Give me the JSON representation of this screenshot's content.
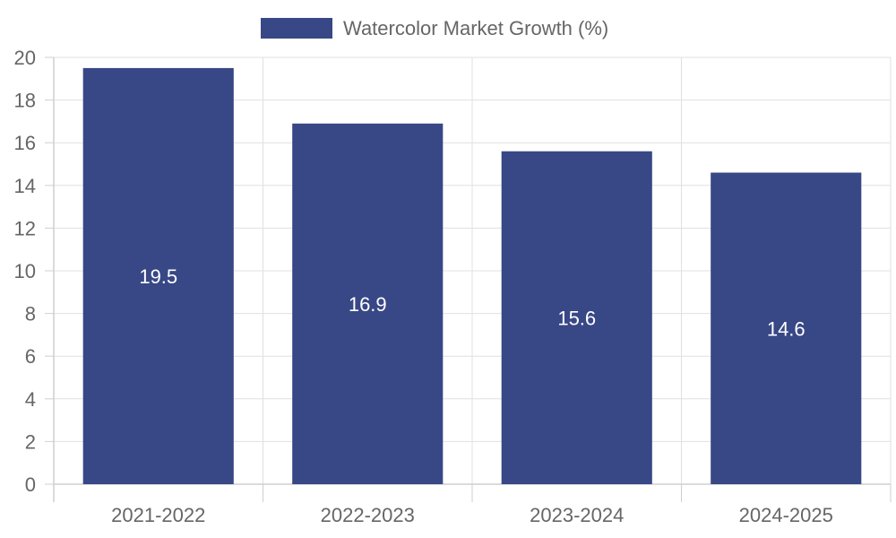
{
  "chart_data": {
    "type": "bar",
    "categories": [
      "2021-2022",
      "2022-2023",
      "2023-2024",
      "2024-2025"
    ],
    "series": [
      {
        "name": "Watercolor Market Growth (%)",
        "values": [
          19.5,
          16.9,
          15.6,
          14.6
        ],
        "color": "#384785"
      }
    ],
    "ylim": [
      0,
      20
    ],
    "y_ticks": [
      0,
      2,
      4,
      6,
      8,
      10,
      12,
      14,
      16,
      18,
      20
    ],
    "grid": true,
    "legend_position": "top-center",
    "data_labels": [
      "19.5",
      "16.9",
      "15.6",
      "14.6"
    ]
  }
}
